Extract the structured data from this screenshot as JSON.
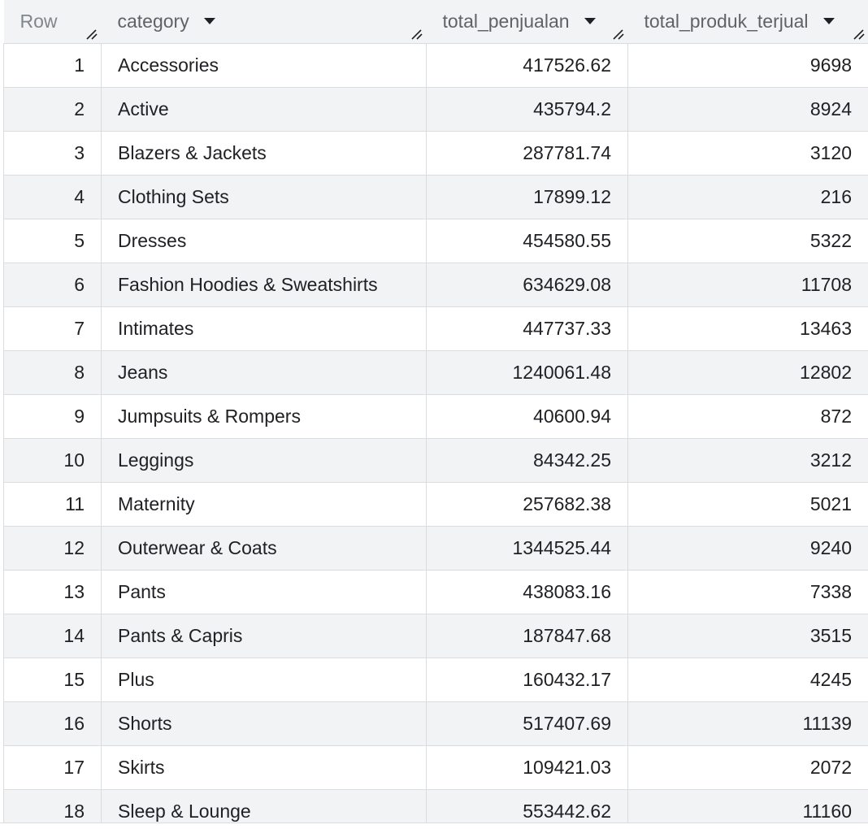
{
  "table": {
    "headers": {
      "row": "Row",
      "category": "category",
      "total_penjualan": "total_penjualan",
      "total_produk_terjual": "total_produk_terjual"
    },
    "rows": [
      {
        "row": "1",
        "category": "Accessories",
        "total_penjualan": "417526.62",
        "total_produk_terjual": "9698"
      },
      {
        "row": "2",
        "category": "Active",
        "total_penjualan": "435794.2",
        "total_produk_terjual": "8924"
      },
      {
        "row": "3",
        "category": "Blazers & Jackets",
        "total_penjualan": "287781.74",
        "total_produk_terjual": "3120"
      },
      {
        "row": "4",
        "category": "Clothing Sets",
        "total_penjualan": "17899.12",
        "total_produk_terjual": "216"
      },
      {
        "row": "5",
        "category": "Dresses",
        "total_penjualan": "454580.55",
        "total_produk_terjual": "5322"
      },
      {
        "row": "6",
        "category": "Fashion Hoodies & Sweatshirts",
        "total_penjualan": "634629.08",
        "total_produk_terjual": "11708"
      },
      {
        "row": "7",
        "category": "Intimates",
        "total_penjualan": "447737.33",
        "total_produk_terjual": "13463"
      },
      {
        "row": "8",
        "category": "Jeans",
        "total_penjualan": "1240061.48",
        "total_produk_terjual": "12802"
      },
      {
        "row": "9",
        "category": "Jumpsuits & Rompers",
        "total_penjualan": "40600.94",
        "total_produk_terjual": "872"
      },
      {
        "row": "10",
        "category": "Leggings",
        "total_penjualan": "84342.25",
        "total_produk_terjual": "3212"
      },
      {
        "row": "11",
        "category": "Maternity",
        "total_penjualan": "257682.38",
        "total_produk_terjual": "5021"
      },
      {
        "row": "12",
        "category": "Outerwear & Coats",
        "total_penjualan": "1344525.44",
        "total_produk_terjual": "9240"
      },
      {
        "row": "13",
        "category": "Pants",
        "total_penjualan": "438083.16",
        "total_produk_terjual": "7338"
      },
      {
        "row": "14",
        "category": "Pants & Capris",
        "total_penjualan": "187847.68",
        "total_produk_terjual": "3515"
      },
      {
        "row": "15",
        "category": "Plus",
        "total_penjualan": "160432.17",
        "total_produk_terjual": "4245"
      },
      {
        "row": "16",
        "category": "Shorts",
        "total_penjualan": "517407.69",
        "total_produk_terjual": "11139"
      },
      {
        "row": "17",
        "category": "Skirts",
        "total_penjualan": "109421.03",
        "total_produk_terjual": "2072"
      },
      {
        "row": "18",
        "category": "Sleep & Lounge",
        "total_penjualan": "553442.62",
        "total_produk_terjual": "11160"
      }
    ]
  },
  "icons": {
    "sort": "sort-caret-icon",
    "resize": "column-resize-grip-icon"
  },
  "colors": {
    "accent": "#1a73e8",
    "header_bg": "#f1f3f4",
    "zebra_bg": "#f1f3f4",
    "grid": "#dadce0"
  }
}
